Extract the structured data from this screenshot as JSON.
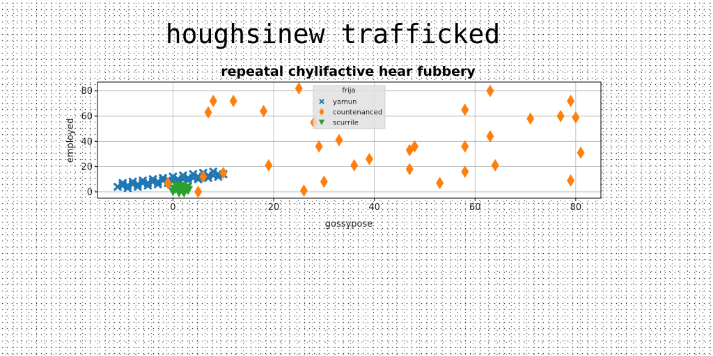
{
  "chart_data": {
    "type": "scatter",
    "suptitle": "houghsinew trafficked",
    "title": "repeatal chylifactive hear fubbery",
    "xlabel": "gossypose",
    "ylabel": "employed",
    "xlim": [
      -15,
      85
    ],
    "ylim": [
      -5,
      87
    ],
    "x_ticks": [
      0,
      20,
      40,
      60,
      80
    ],
    "y_ticks": [
      0,
      20,
      40,
      60,
      80
    ],
    "grid": true,
    "legend": {
      "title": "frija",
      "position": "top-center"
    },
    "series": [
      {
        "name": "yamun",
        "marker": "x",
        "color": "#1f77b4",
        "points": [
          [
            -11,
            4
          ],
          [
            -10,
            5
          ],
          [
            -9,
            5
          ],
          [
            -8,
            6
          ],
          [
            -7,
            6
          ],
          [
            -6,
            7
          ],
          [
            -5,
            7
          ],
          [
            -4,
            8
          ],
          [
            -3,
            8
          ],
          [
            -2,
            9
          ],
          [
            -1,
            9
          ],
          [
            0,
            9
          ],
          [
            1,
            10
          ],
          [
            2,
            10
          ],
          [
            3,
            11
          ],
          [
            4,
            11
          ],
          [
            5,
            12
          ],
          [
            6,
            12
          ],
          [
            7,
            13
          ],
          [
            8,
            13
          ],
          [
            9,
            14
          ],
          [
            10,
            14
          ],
          [
            -10,
            7
          ],
          [
            -8,
            8
          ],
          [
            -6,
            9
          ],
          [
            -4,
            10
          ],
          [
            -2,
            11
          ],
          [
            0,
            12
          ],
          [
            2,
            13
          ],
          [
            4,
            14
          ],
          [
            6,
            15
          ],
          [
            8,
            16
          ],
          [
            -9,
            3
          ],
          [
            -7,
            4
          ],
          [
            -5,
            5
          ],
          [
            -3,
            6
          ],
          [
            -1,
            7
          ],
          [
            1,
            8
          ],
          [
            3,
            9
          ],
          [
            5,
            10
          ],
          [
            7,
            11
          ],
          [
            9,
            12
          ]
        ]
      },
      {
        "name": "countenanced",
        "marker": "d",
        "color": "#ff7f0e",
        "points": [
          [
            -1,
            7
          ],
          [
            5,
            0
          ],
          [
            6,
            12
          ],
          [
            7,
            63
          ],
          [
            8,
            72
          ],
          [
            10,
            15
          ],
          [
            12,
            72
          ],
          [
            18,
            64
          ],
          [
            19,
            21
          ],
          [
            25,
            82
          ],
          [
            26,
            1
          ],
          [
            28,
            55
          ],
          [
            29,
            36
          ],
          [
            30,
            8
          ],
          [
            33,
            41
          ],
          [
            36,
            21
          ],
          [
            39,
            26
          ],
          [
            47,
            18
          ],
          [
            47,
            33
          ],
          [
            48,
            36
          ],
          [
            53,
            7
          ],
          [
            58,
            16
          ],
          [
            58,
            36
          ],
          [
            58,
            65
          ],
          [
            63,
            80
          ],
          [
            63,
            44
          ],
          [
            64,
            21
          ],
          [
            71,
            58
          ],
          [
            77,
            60
          ],
          [
            79,
            72
          ],
          [
            79,
            9
          ],
          [
            80,
            59
          ],
          [
            81,
            31
          ]
        ]
      },
      {
        "name": "scurrile",
        "marker": "v",
        "color": "#2ca02c",
        "points": [
          [
            0,
            0
          ],
          [
            0.5,
            2
          ],
          [
            1,
            1
          ],
          [
            1.5,
            3
          ],
          [
            2,
            0
          ],
          [
            2.5,
            2
          ],
          [
            3,
            1
          ],
          [
            0.8,
            4
          ],
          [
            1.8,
            4
          ],
          [
            2.8,
            3
          ],
          [
            1.2,
            -1
          ],
          [
            2.2,
            -1
          ]
        ]
      }
    ]
  }
}
